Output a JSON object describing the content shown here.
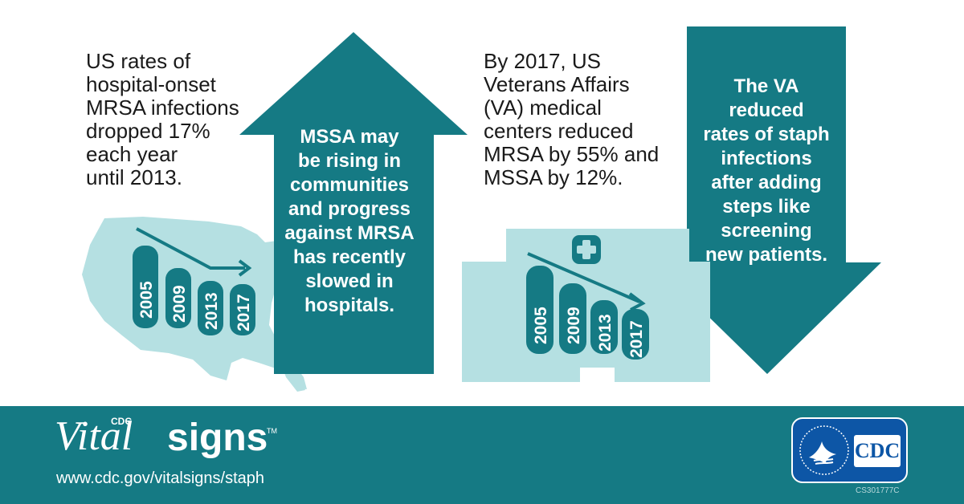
{
  "left_text": [
    "US rates of",
    "hospital-onset",
    "MRSA infections",
    "dropped 17%",
    "each year",
    "until 2013."
  ],
  "middle_text": [
    "By 2017, US",
    "Veterans Affairs",
    "(VA) medical",
    "centers reduced",
    "MRSA by 55% and",
    "MSSA by 12%."
  ],
  "up_arrow_text": [
    "MSSA may",
    "be rising in",
    "communities",
    "and progress",
    "against MRSA",
    "has recently",
    "slowed in",
    "hospitals."
  ],
  "down_arrow_text": [
    "The VA",
    "reduced",
    "rates of staph",
    "infections",
    "after adding",
    "steps like",
    "screening",
    "new patients."
  ],
  "us_chart": {
    "bars": [
      "2005",
      "2009",
      "2013",
      "2017"
    ]
  },
  "va_chart": {
    "bars": [
      "2005",
      "2009",
      "2013",
      "2017"
    ]
  },
  "footer": {
    "brand_cdc": "CDC",
    "brand_vital": "Vital",
    "brand_signs": "signs",
    "brand_tm": "TM",
    "url": "www.cdc.gov/vitalsigns/staph",
    "logo_text": "CDC",
    "code": "CS301777C"
  },
  "colors": {
    "teal": "#157a84",
    "light_teal": "#b5e0e2",
    "white": "#ffffff"
  }
}
